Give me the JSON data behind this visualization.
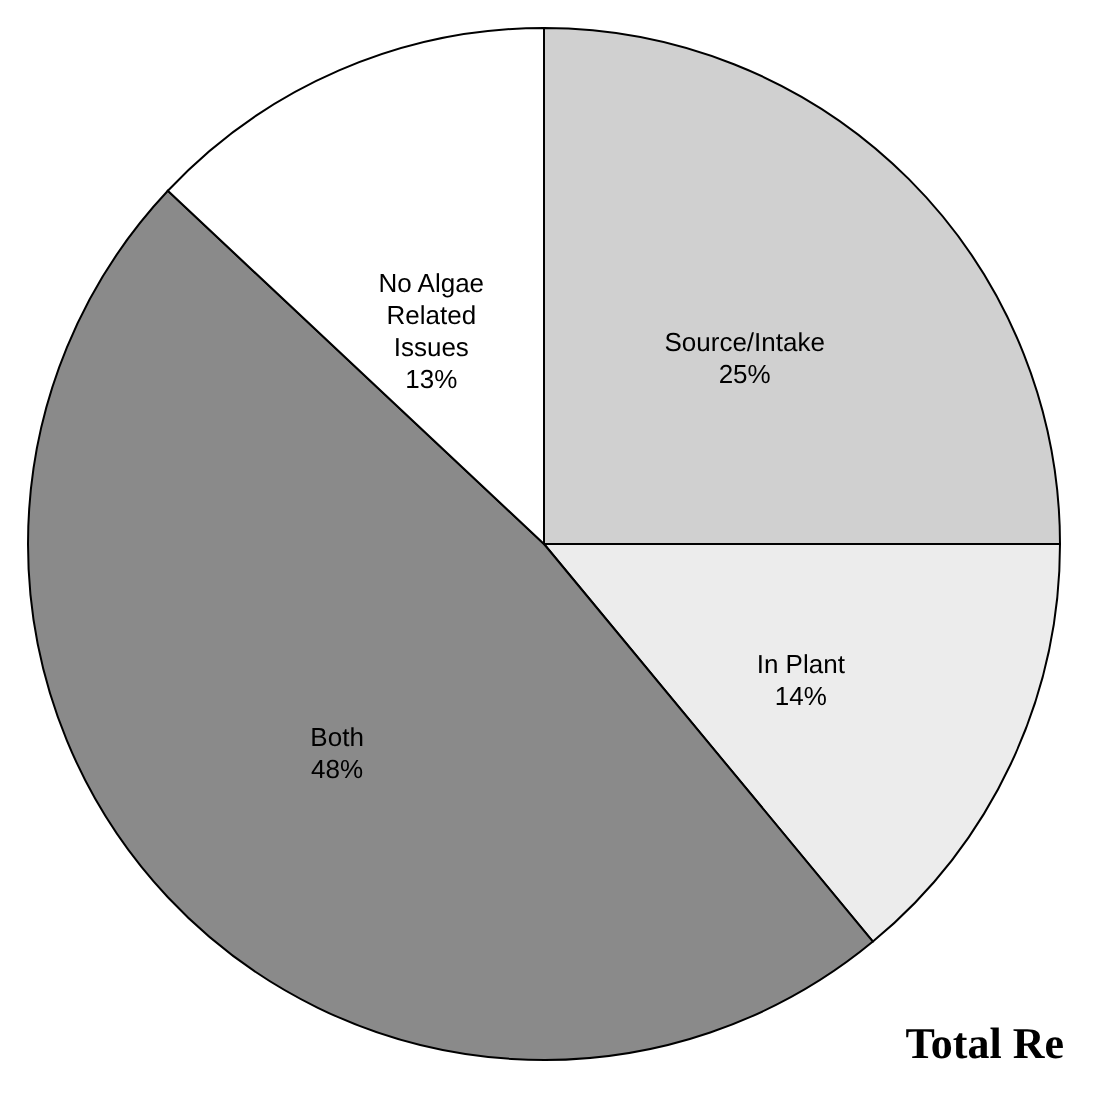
{
  "chart_data": {
    "type": "pie",
    "categories": [
      "Source/Intake",
      "In Plant",
      "Both",
      "No Algae Related Issues"
    ],
    "values": [
      25,
      14,
      48,
      13
    ],
    "colors": [
      "#d0d0d0",
      "#ececec",
      "#8a8a8a",
      "#ffffff"
    ],
    "value_labels": [
      "25%",
      "14%",
      "48%",
      "13%"
    ],
    "legend": false,
    "annotations": [
      "Total Re"
    ]
  }
}
